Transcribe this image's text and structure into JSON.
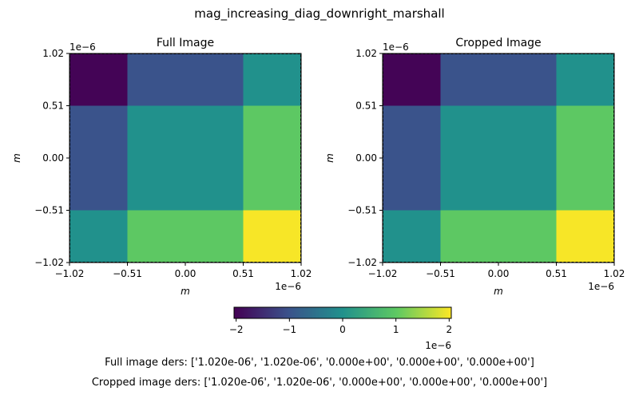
{
  "figure": {
    "suptitle": "mag_increasing_diag_downright_marshall",
    "full_ders_caption": "Full image ders: ['1.020e-06', '1.020e-06', '0.000e+00', '0.000e+00', '0.000e+00']",
    "cropped_ders_caption": "Cropped image ders: ['1.020e-06', '1.020e-06', '0.000e+00', '0.000e+00', '0.000e+00']"
  },
  "chart_data": [
    {
      "type": "heatmap",
      "title": "Full Image",
      "xlabel": "m",
      "ylabel": "m",
      "x_offset_label": "1e−6",
      "y_offset_label": "1e−6",
      "x_edges": [
        -1.02,
        -0.51,
        0.51,
        1.02
      ],
      "y_edges": [
        -1.02,
        -0.51,
        0.51,
        1.02
      ],
      "xlim": [
        -1.02,
        1.02
      ],
      "ylim": [
        -1.02,
        1.02
      ],
      "x_ticks": [
        -1.02,
        -0.51,
        0.0,
        0.51,
        1.02
      ],
      "x_tick_labels": [
        "−1.02",
        "−0.51",
        "0.00",
        "0.51",
        "1.02"
      ],
      "y_ticks": [
        -1.02,
        -0.51,
        0.0,
        0.51,
        1.02
      ],
      "y_tick_labels": [
        "−1.02",
        "−0.51",
        "0.00",
        "0.51",
        "1.02"
      ],
      "values_top_to_bottom": [
        [
          -2,
          -1,
          0
        ],
        [
          -1,
          0,
          1
        ],
        [
          0,
          1,
          2
        ]
      ],
      "value_scale": "1e-6"
    },
    {
      "type": "heatmap",
      "title": "Cropped Image",
      "xlabel": "m",
      "ylabel": "m",
      "x_offset_label": "1e−6",
      "y_offset_label": "1e−6",
      "x_edges": [
        -1.02,
        -0.51,
        0.51,
        1.02
      ],
      "y_edges": [
        -1.02,
        -0.51,
        0.51,
        1.02
      ],
      "xlim": [
        -1.02,
        1.02
      ],
      "ylim": [
        -1.02,
        1.02
      ],
      "x_ticks": [
        -1.02,
        -0.51,
        0.0,
        0.51,
        1.02
      ],
      "x_tick_labels": [
        "−1.02",
        "−0.51",
        "0.00",
        "0.51",
        "1.02"
      ],
      "y_ticks": [
        -1.02,
        -0.51,
        0.0,
        0.51,
        1.02
      ],
      "y_tick_labels": [
        "−1.02",
        "−0.51",
        "0.00",
        "0.51",
        "1.02"
      ],
      "values_top_to_bottom": [
        [
          -2,
          -1,
          0
        ],
        [
          -1,
          0,
          1
        ],
        [
          0,
          1,
          2
        ]
      ],
      "value_scale": "1e-6"
    }
  ],
  "colorbar": {
    "colormap": "viridis",
    "vmin": -2.04,
    "vmax": 2.04,
    "ticks": [
      -2,
      -1,
      0,
      1,
      2
    ],
    "tick_labels": [
      "−2",
      "−1",
      "0",
      "1",
      "2"
    ],
    "offset_label": "1e−6"
  }
}
